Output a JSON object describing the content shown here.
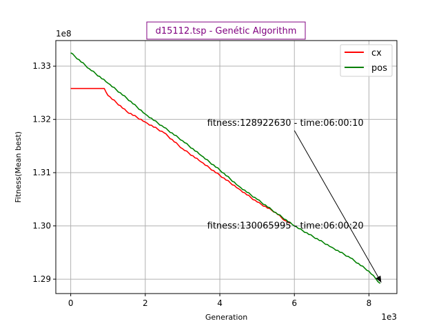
{
  "chart_data": {
    "type": "line",
    "title": "d15112.tsp - Genétic Algorithm",
    "title_color": "#800080",
    "xlabel": "Generation",
    "ylabel": "Fitness(Mean best)",
    "x_multiplier": "1e3",
    "y_multiplier": "1e8",
    "xlim": [
      -400,
      8750
    ],
    "ylim": [
      128730000,
      133480000
    ],
    "x_ticks": [
      0,
      2000,
      4000,
      6000,
      8000
    ],
    "x_tick_labels": [
      "0",
      "2",
      "4",
      "6",
      "8"
    ],
    "y_ticks": [
      129000000,
      130000000,
      131000000,
      132000000,
      133000000
    ],
    "y_tick_labels": [
      "1.29",
      "1.30",
      "1.31",
      "1.32",
      "1.33"
    ],
    "grid": true,
    "legend_position": "top-right",
    "series": [
      {
        "name": "cx",
        "color": "#ff0000",
        "x": [
          0,
          900,
          1000,
          1500,
          2000,
          2500,
          3000,
          3500,
          4000,
          4500,
          5000,
          5500,
          5750,
          5900
        ],
        "y": [
          132580000,
          132580000,
          132450000,
          132150000,
          131950000,
          131750000,
          131450000,
          131200000,
          130950000,
          130700000,
          130450000,
          130250000,
          130100000,
          130050000
        ]
      },
      {
        "name": "pos",
        "color": "#008000",
        "x": [
          0,
          500,
          1000,
          1500,
          2000,
          2500,
          3000,
          3500,
          4000,
          4500,
          5000,
          5500,
          6000,
          6500,
          7000,
          7500,
          8000,
          8300
        ],
        "y": [
          133250000,
          132950000,
          132680000,
          132400000,
          132100000,
          131850000,
          131600000,
          131320000,
          131050000,
          130750000,
          130500000,
          130250000,
          130000000,
          129800000,
          129600000,
          129400000,
          129150000,
          128920000
        ]
      }
    ],
    "annotations": [
      {
        "text": "fitness:128922630 - time:06:00:10",
        "text_x": 3660,
        "text_y": 131880000,
        "arrow_from_x": 6000,
        "arrow_from_y": 131790000,
        "arrow_to_x": 8330,
        "arrow_to_y": 128940000
      },
      {
        "text": "fitness:130065995 - time:06:00:20",
        "text_x": 3660,
        "text_y": 129950000
      }
    ]
  }
}
